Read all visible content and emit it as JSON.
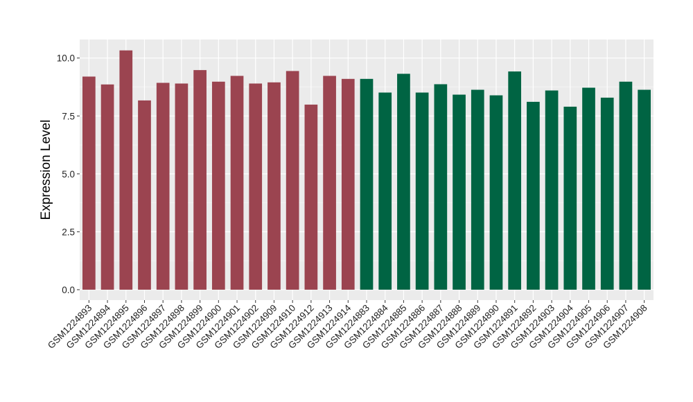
{
  "chart_data": {
    "type": "bar",
    "title": "",
    "xlabel": "",
    "ylabel": "Expression Level",
    "ylim": [
      -0.45,
      10.8
    ],
    "yticks": [
      0.0,
      2.5,
      5.0,
      7.5,
      10.0
    ],
    "ytick_labels": [
      "0.0",
      "2.5",
      "5.0",
      "7.5",
      "10.0"
    ],
    "grid": true,
    "legend": "none",
    "colors": {
      "panel_background": "#EBEBEB",
      "grid_major": "#FFFFFF",
      "group_1": "#9B4450",
      "group_2": "#006443"
    },
    "categories": [
      "GSM1224893",
      "GSM1224894",
      "GSM1224895",
      "GSM1224896",
      "GSM1224897",
      "GSM1224898",
      "GSM1224899",
      "GSM1224900",
      "GSM1224901",
      "GSM1224902",
      "GSM1224909",
      "GSM1224910",
      "GSM1224912",
      "GSM1224913",
      "GSM1224914",
      "GSM1224883",
      "GSM1224884",
      "GSM1224885",
      "GSM1224886",
      "GSM1224887",
      "GSM1224888",
      "GSM1224889",
      "GSM1224890",
      "GSM1224891",
      "GSM1224892",
      "GSM1224903",
      "GSM1224904",
      "GSM1224905",
      "GSM1224906",
      "GSM1224907",
      "GSM1224908"
    ],
    "values": [
      9.2,
      8.86,
      10.33,
      8.17,
      8.93,
      8.9,
      9.48,
      8.98,
      9.23,
      8.9,
      8.95,
      9.44,
      7.99,
      9.23,
      9.1,
      9.1,
      8.51,
      9.32,
      8.51,
      8.87,
      8.42,
      8.63,
      8.39,
      9.42,
      8.11,
      8.6,
      7.9,
      8.72,
      8.29,
      8.98,
      8.63
    ],
    "groups": [
      "group_1",
      "group_1",
      "group_1",
      "group_1",
      "group_1",
      "group_1",
      "group_1",
      "group_1",
      "group_1",
      "group_1",
      "group_1",
      "group_1",
      "group_1",
      "group_1",
      "group_1",
      "group_2",
      "group_2",
      "group_2",
      "group_2",
      "group_2",
      "group_2",
      "group_2",
      "group_2",
      "group_2",
      "group_2",
      "group_2",
      "group_2",
      "group_2",
      "group_2",
      "group_2",
      "group_2"
    ]
  }
}
